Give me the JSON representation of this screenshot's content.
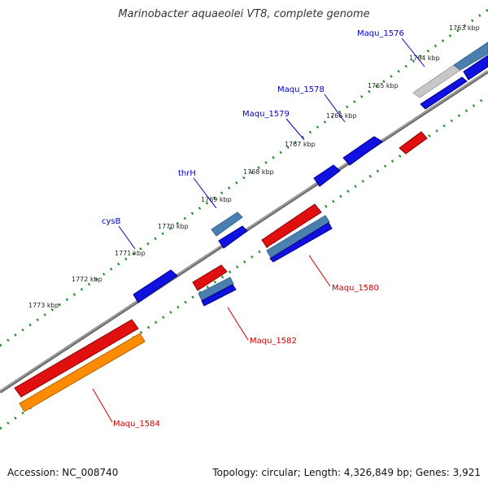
{
  "title": "Marinobacter aquaeolei VT8, complete genome",
  "footer": {
    "accession": "Accession: NC_008740",
    "summary": "Topology: circular; Length: 4,326,849 bp; Genes: 3,921"
  },
  "colors": {
    "forward_cds": "#1010e0",
    "forward_gene": "#4a7fb0",
    "reverse_cds": "#e01010",
    "reverse_gene": "#4a7fb0",
    "rna": "#ff8c00",
    "pseudo": "#c0c0c0",
    "backbone": "#777777",
    "ruler": "#1a8a1a",
    "forward_label": "#0000cc",
    "reverse_label": "#cc0000"
  },
  "ruler_labels": [
    "1763 kbp",
    "1764 kbp",
    "1765 kbp",
    "1766 kbp",
    "1767 kbp",
    "1768 kbp",
    "1769 kbp",
    "1770 kbp",
    "1771 kbp",
    "1772 kbp",
    "1773 kbp"
  ],
  "gene_labels": {
    "maqu_1576": "Maqu_1576",
    "maqu_1578": "Maqu_1578",
    "maqu_1579": "Maqu_1579",
    "thrh": "thrH",
    "cysb": "cysB",
    "maqu_1580": "Maqu_1580",
    "maqu_1582": "Maqu_1582",
    "maqu_1584": "Maqu_1584"
  }
}
